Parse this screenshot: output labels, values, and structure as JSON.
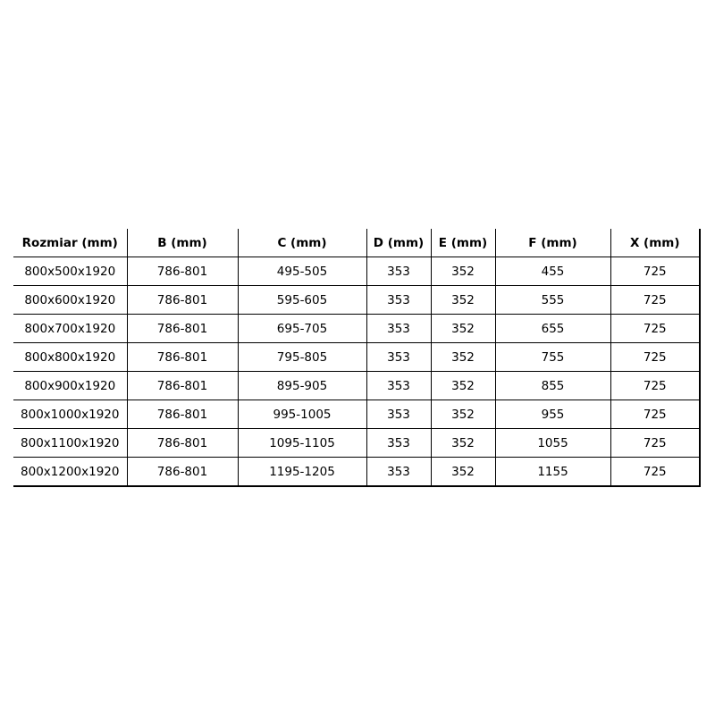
{
  "table": {
    "headers": [
      "Rozmiar (mm)",
      "B (mm)",
      "C (mm)",
      "D (mm)",
      "E (mm)",
      "F (mm)",
      "X (mm)"
    ],
    "rows": [
      [
        "800x500x1920",
        "786-801",
        "495-505",
        "353",
        "352",
        "455",
        "725"
      ],
      [
        "800x600x1920",
        "786-801",
        "595-605",
        "353",
        "352",
        "555",
        "725"
      ],
      [
        "800x700x1920",
        "786-801",
        "695-705",
        "353",
        "352",
        "655",
        "725"
      ],
      [
        "800x800x1920",
        "786-801",
        "795-805",
        "353",
        "352",
        "755",
        "725"
      ],
      [
        "800x900x1920",
        "786-801",
        "895-905",
        "353",
        "352",
        "855",
        "725"
      ],
      [
        "800x1000x1920",
        "786-801",
        "995-1005",
        "353",
        "352",
        "955",
        "725"
      ],
      [
        "800x1100x1920",
        "786-801",
        "1095-1105",
        "353",
        "352",
        "1055",
        "725"
      ],
      [
        "800x1200x1920",
        "786-801",
        "1195-1205",
        "353",
        "352",
        "1155",
        "725"
      ]
    ]
  }
}
